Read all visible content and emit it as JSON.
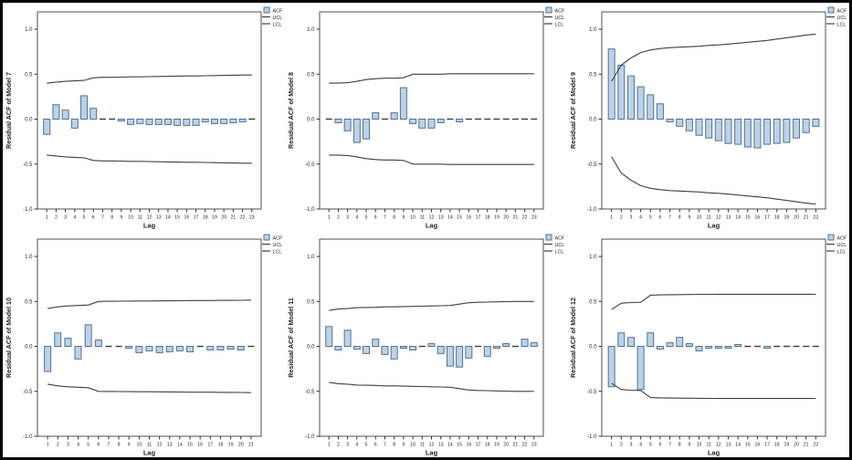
{
  "figure": {
    "xlabel": "Lag",
    "legend": [
      "ACF",
      "UCL",
      "LCL"
    ],
    "yticks": [
      1.0,
      0.5,
      0.0,
      -0.5,
      -1.0
    ],
    "ylim": [
      -1.0,
      1.0
    ]
  },
  "colors": {
    "bar_fill": "#bcd2e8",
    "bar_stroke": "#52718f",
    "cl_line": "#3f3f3f",
    "axis_box": "#4d4d4d",
    "tick": "#333333",
    "dash_bar": "#3c3c3c",
    "background": "#ffffff",
    "outer_border": "#000000"
  },
  "chart_data": [
    {
      "type": "bar",
      "model": 7,
      "ylabel": "Residual ACF of Model 7",
      "xlabel": "Lag",
      "ylim": [
        -1.0,
        1.0
      ],
      "yticks": [
        1.0,
        0.5,
        0.0,
        -0.5,
        -1.0
      ],
      "legend": [
        "ACF",
        "UCL",
        "LCL"
      ],
      "legend_position": "top-right",
      "grid": false,
      "x": [
        1,
        2,
        3,
        4,
        5,
        6,
        7,
        8,
        9,
        10,
        11,
        12,
        13,
        14,
        15,
        16,
        17,
        18,
        19,
        20,
        21,
        22,
        23
      ],
      "series": [
        {
          "name": "ACF",
          "values": [
            -0.17,
            0.16,
            0.1,
            -0.1,
            0.26,
            0.12,
            -0.01,
            -0.01,
            -0.02,
            -0.06,
            -0.05,
            -0.06,
            -0.06,
            -0.06,
            -0.07,
            -0.07,
            -0.07,
            -0.03,
            -0.05,
            -0.05,
            -0.04,
            -0.03,
            -0.01
          ]
        },
        {
          "name": "UCL",
          "values": [
            0.4,
            0.41,
            0.42,
            0.425,
            0.43,
            0.46,
            0.465,
            0.465,
            0.467,
            0.47,
            0.47,
            0.472,
            0.474,
            0.476,
            0.478,
            0.48,
            0.48,
            0.482,
            0.484,
            0.486,
            0.488,
            0.49,
            0.49
          ]
        },
        {
          "name": "LCL",
          "values": [
            -0.4,
            -0.41,
            -0.42,
            -0.425,
            -0.43,
            -0.46,
            -0.465,
            -0.465,
            -0.467,
            -0.47,
            -0.47,
            -0.472,
            -0.474,
            -0.476,
            -0.478,
            -0.48,
            -0.48,
            -0.482,
            -0.484,
            -0.486,
            -0.488,
            -0.49,
            -0.49
          ]
        }
      ]
    },
    {
      "type": "bar",
      "model": 8,
      "ylabel": "Residual ACF of Model 8",
      "xlabel": "Lag",
      "ylim": [
        -1.0,
        1.0
      ],
      "yticks": [
        1.0,
        0.5,
        0.0,
        -0.5,
        -1.0
      ],
      "legend": [
        "ACF",
        "UCL",
        "LCL"
      ],
      "legend_position": "top-right",
      "grid": false,
      "x": [
        1,
        2,
        3,
        4,
        5,
        6,
        7,
        8,
        9,
        10,
        11,
        12,
        13,
        14,
        15,
        16,
        17,
        18,
        19,
        20,
        21,
        22,
        23
      ],
      "series": [
        {
          "name": "ACF",
          "values": [
            -0.01,
            -0.04,
            -0.13,
            -0.26,
            -0.22,
            0.07,
            -0.01,
            0.07,
            0.35,
            -0.05,
            -0.1,
            -0.1,
            -0.04,
            -0.01,
            -0.03,
            -0.01,
            -0.01,
            0.01,
            -0.01,
            -0.01,
            -0.01,
            -0.01,
            -0.01
          ]
        },
        {
          "name": "UCL",
          "values": [
            0.4,
            0.4,
            0.405,
            0.42,
            0.44,
            0.45,
            0.455,
            0.455,
            0.46,
            0.5,
            0.5,
            0.5,
            0.5,
            0.505,
            0.505,
            0.505,
            0.505,
            0.505,
            0.505,
            0.505,
            0.505,
            0.505,
            0.505
          ]
        },
        {
          "name": "LCL",
          "values": [
            -0.4,
            -0.4,
            -0.405,
            -0.42,
            -0.44,
            -0.45,
            -0.455,
            -0.455,
            -0.46,
            -0.5,
            -0.5,
            -0.5,
            -0.5,
            -0.505,
            -0.505,
            -0.505,
            -0.505,
            -0.505,
            -0.505,
            -0.505,
            -0.505,
            -0.505,
            -0.505
          ]
        }
      ]
    },
    {
      "type": "bar",
      "model": 9,
      "ylabel": "Residual ACF of Model 9",
      "xlabel": "Lag",
      "ylim": [
        -1.0,
        1.0
      ],
      "yticks": [
        1.0,
        0.5,
        0.0,
        -0.5,
        -1.0
      ],
      "legend": [
        "ACF",
        "UCL",
        "LCL"
      ],
      "legend_position": "top-right",
      "grid": false,
      "x": [
        1,
        2,
        3,
        4,
        5,
        6,
        7,
        8,
        9,
        10,
        11,
        12,
        13,
        14,
        15,
        16,
        17,
        18,
        19,
        20,
        21,
        22
      ],
      "series": [
        {
          "name": "ACF",
          "values": [
            0.78,
            0.6,
            0.48,
            0.36,
            0.27,
            0.17,
            -0.03,
            -0.08,
            -0.13,
            -0.18,
            -0.21,
            -0.24,
            -0.27,
            -0.28,
            -0.31,
            -0.32,
            -0.28,
            -0.27,
            -0.26,
            -0.21,
            -0.15,
            -0.08
          ]
        },
        {
          "name": "UCL",
          "values": [
            0.42,
            0.6,
            0.68,
            0.74,
            0.77,
            0.785,
            0.795,
            0.8,
            0.805,
            0.81,
            0.82,
            0.825,
            0.835,
            0.845,
            0.855,
            0.865,
            0.875,
            0.89,
            0.905,
            0.92,
            0.935,
            0.945
          ]
        },
        {
          "name": "LCL",
          "values": [
            -0.42,
            -0.6,
            -0.68,
            -0.74,
            -0.77,
            -0.785,
            -0.795,
            -0.8,
            -0.805,
            -0.81,
            -0.82,
            -0.825,
            -0.835,
            -0.845,
            -0.855,
            -0.865,
            -0.875,
            -0.89,
            -0.905,
            -0.92,
            -0.935,
            -0.945
          ]
        }
      ]
    },
    {
      "type": "bar",
      "model": 10,
      "ylabel": "Residual ACF of Model 10",
      "xlabel": "Lag",
      "ylim": [
        -1.0,
        1.0
      ],
      "yticks": [
        1.0,
        0.5,
        0.0,
        -0.5,
        -1.0
      ],
      "legend": [
        "ACF",
        "UCL",
        "LCL"
      ],
      "legend_position": "top-right",
      "grid": false,
      "x": [
        1,
        2,
        3,
        4,
        5,
        6,
        7,
        8,
        9,
        10,
        11,
        12,
        13,
        14,
        15,
        16,
        17,
        18,
        19,
        20,
        21
      ],
      "series": [
        {
          "name": "ACF",
          "values": [
            -0.28,
            0.15,
            0.09,
            -0.14,
            0.24,
            0.07,
            -0.01,
            -0.01,
            -0.02,
            -0.07,
            -0.05,
            -0.07,
            -0.06,
            -0.05,
            -0.06,
            -0.01,
            -0.04,
            -0.04,
            -0.03,
            -0.04,
            -0.01
          ]
        },
        {
          "name": "UCL",
          "values": [
            0.42,
            0.44,
            0.45,
            0.455,
            0.46,
            0.5,
            0.502,
            0.503,
            0.504,
            0.505,
            0.505,
            0.506,
            0.507,
            0.508,
            0.51,
            0.51,
            0.51,
            0.512,
            0.512,
            0.513,
            0.515
          ]
        },
        {
          "name": "LCL",
          "values": [
            -0.42,
            -0.44,
            -0.45,
            -0.455,
            -0.46,
            -0.5,
            -0.502,
            -0.503,
            -0.504,
            -0.505,
            -0.505,
            -0.506,
            -0.507,
            -0.508,
            -0.51,
            -0.51,
            -0.51,
            -0.512,
            -0.512,
            -0.513,
            -0.515
          ]
        }
      ]
    },
    {
      "type": "bar",
      "model": 11,
      "ylabel": "Residual ACF of Model 11",
      "xlabel": "Lag",
      "ylim": [
        -1.0,
        1.0
      ],
      "yticks": [
        1.0,
        0.5,
        0.0,
        -0.5,
        -1.0
      ],
      "legend": [
        "ACF",
        "UCL",
        "LCL"
      ],
      "legend_position": "top-right",
      "grid": false,
      "x": [
        1,
        2,
        3,
        4,
        5,
        6,
        7,
        8,
        9,
        10,
        11,
        12,
        13,
        14,
        15,
        16,
        17,
        18,
        19,
        20,
        21,
        22,
        23
      ],
      "series": [
        {
          "name": "ACF",
          "values": [
            0.22,
            -0.04,
            0.18,
            -0.03,
            -0.08,
            0.08,
            -0.09,
            -0.14,
            -0.02,
            -0.04,
            -0.01,
            0.03,
            -0.08,
            -0.22,
            -0.23,
            -0.13,
            0.01,
            -0.11,
            -0.02,
            0.03,
            0.01,
            0.08,
            0.04
          ]
        },
        {
          "name": "UCL",
          "values": [
            0.4,
            0.415,
            0.42,
            0.43,
            0.432,
            0.435,
            0.44,
            0.44,
            0.443,
            0.445,
            0.447,
            0.45,
            0.452,
            0.455,
            0.47,
            0.485,
            0.49,
            0.492,
            0.495,
            0.497,
            0.5,
            0.5,
            0.5
          ]
        },
        {
          "name": "LCL",
          "values": [
            -0.4,
            -0.415,
            -0.42,
            -0.43,
            -0.432,
            -0.435,
            -0.44,
            -0.44,
            -0.443,
            -0.445,
            -0.447,
            -0.45,
            -0.452,
            -0.455,
            -0.47,
            -0.485,
            -0.49,
            -0.492,
            -0.495,
            -0.497,
            -0.5,
            -0.5,
            -0.5
          ]
        }
      ]
    },
    {
      "type": "bar",
      "model": 12,
      "ylabel": "Residual ACF of Model 12",
      "xlabel": "Lag",
      "ylim": [
        -1.0,
        1.0
      ],
      "yticks": [
        1.0,
        0.5,
        0.0,
        -0.5,
        -1.0
      ],
      "legend": [
        "ACF",
        "UCL",
        "LCL"
      ],
      "legend_position": "top-right",
      "grid": false,
      "x": [
        1,
        2,
        3,
        4,
        5,
        6,
        7,
        8,
        9,
        10,
        11,
        12,
        13,
        14,
        15,
        16,
        17,
        18,
        19,
        20,
        21,
        22
      ],
      "series": [
        {
          "name": "ACF",
          "values": [
            -0.45,
            0.15,
            0.1,
            -0.48,
            0.15,
            -0.03,
            0.04,
            0.1,
            0.03,
            -0.05,
            -0.02,
            -0.02,
            -0.02,
            0.02,
            0.01,
            -0.01,
            -0.02,
            -0.01,
            -0.01,
            -0.01,
            0.01,
            0.01
          ]
        },
        {
          "name": "UCL",
          "values": [
            0.41,
            0.48,
            0.487,
            0.49,
            0.57,
            0.573,
            0.575,
            0.576,
            0.577,
            0.578,
            0.579,
            0.58,
            0.58,
            0.58,
            0.58,
            0.58,
            0.58,
            0.58,
            0.58,
            0.58,
            0.58,
            0.58
          ]
        },
        {
          "name": "LCL",
          "values": [
            -0.41,
            -0.48,
            -0.487,
            -0.49,
            -0.57,
            -0.573,
            -0.575,
            -0.576,
            -0.577,
            -0.578,
            -0.579,
            -0.58,
            -0.58,
            -0.58,
            -0.58,
            -0.58,
            -0.58,
            -0.58,
            -0.58,
            -0.58,
            -0.58,
            -0.58
          ]
        }
      ]
    }
  ]
}
